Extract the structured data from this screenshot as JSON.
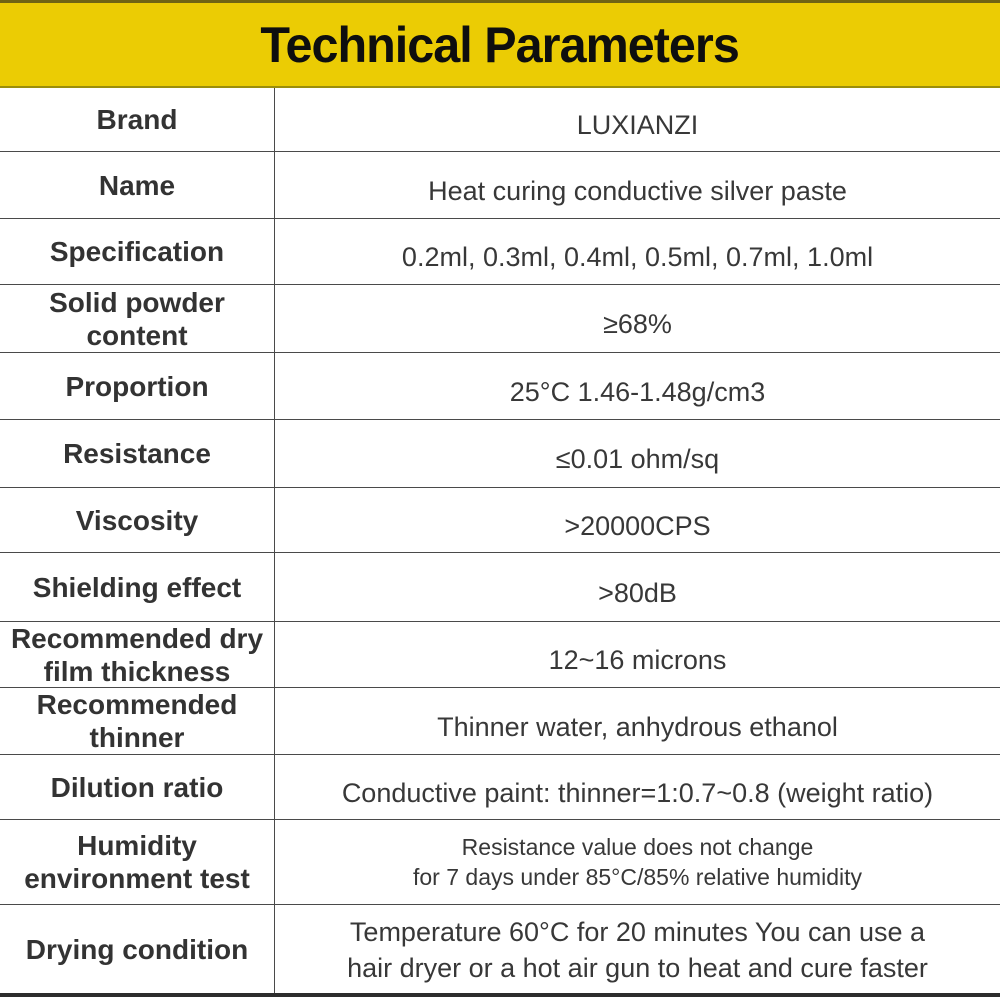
{
  "header": {
    "title": "Technical Parameters"
  },
  "table": {
    "rows": [
      {
        "label": "Brand",
        "value": "LUXIANZI"
      },
      {
        "label": "Name",
        "value": "Heat curing conductive silver paste"
      },
      {
        "label": "Specification",
        "value": "0.2ml、0.3ml、0.4ml、0.5ml、0.7ml、1.0ml"
      },
      {
        "label": "Solid powder\ncontent",
        "value": "≥68%"
      },
      {
        "label": "Proportion",
        "value": "25°C 1.46-1.48g/cm3"
      },
      {
        "label": "Resistance",
        "value": "≤0.01 ohm/sq"
      },
      {
        "label": "Viscosity",
        "value": ">20000CPS"
      },
      {
        "label": "Shielding effect",
        "value": ">80dB"
      },
      {
        "label": "Recommended dry\nfilm thickness",
        "value": "12~16 microns"
      },
      {
        "label": "Recommended\nthinner",
        "value": "Thinner water, anhydrous ethanol"
      },
      {
        "label": "Dilution ratio",
        "value": "Conductive paint: thinner=1:0.7~0.8 (weight ratio)"
      },
      {
        "label": "Humidity\nenvironment test",
        "value": "Resistance value does not change\nfor 7 days under 85°C/85% relative humidity"
      },
      {
        "label": "Drying condition",
        "value": "Temperature 60°C for 20 minutes You can use a\nhair dryer or a hot air gun to heat and cure faster"
      }
    ]
  },
  "colors": {
    "banner_yellow": "#EBCC04",
    "banner_edge_dark": "#6F6414",
    "title_black": "#0E0E0E",
    "text_dark": "#383838",
    "border_gray": "#4A4A4A",
    "bottom_line": "#2D2D2D"
  }
}
